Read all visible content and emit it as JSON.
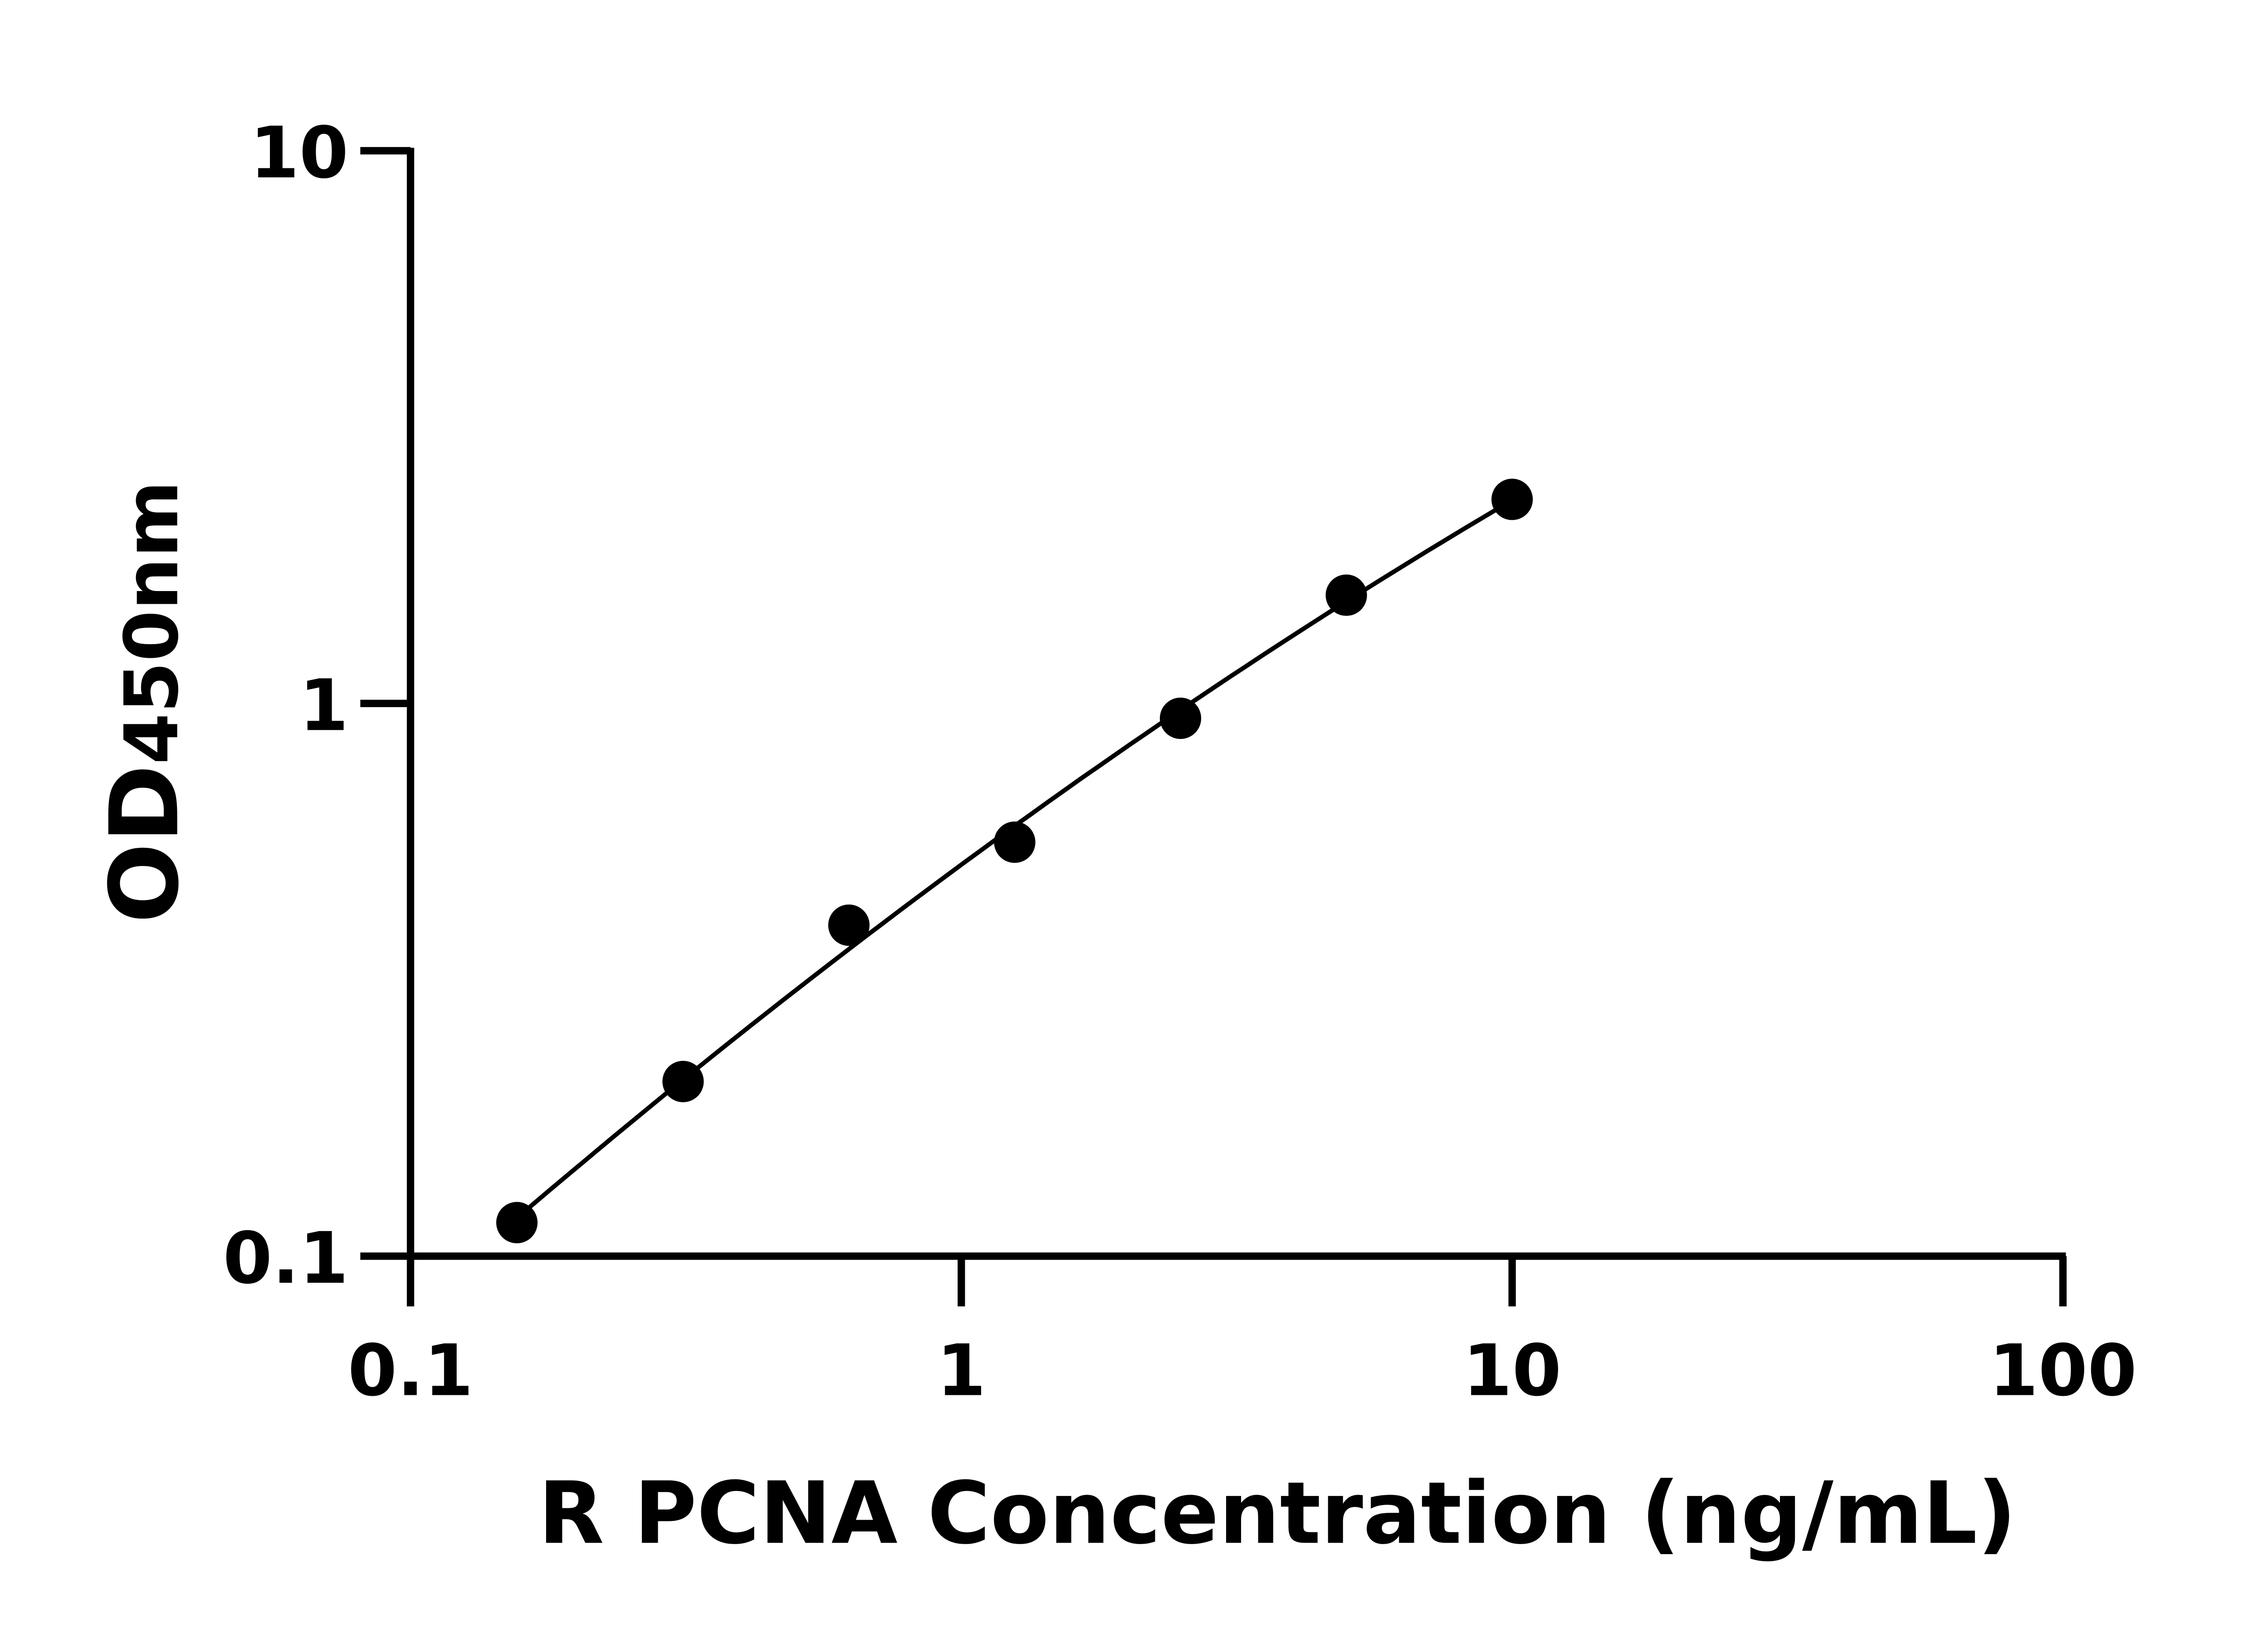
{
  "chart_data": {
    "type": "scatter",
    "title": "",
    "xlabel": "R PCNA Concentration (ng/mL)",
    "ylabel": "OD450nm",
    "ylabel_main": "OD",
    "ylabel_sub": "450nm",
    "x_scale": "log",
    "y_scale": "log",
    "xlim": [
      0.1,
      100
    ],
    "ylim": [
      0.1,
      10
    ],
    "x_ticks": [
      "0.1",
      "1",
      "10",
      "100"
    ],
    "y_ticks": [
      "0.1",
      "1",
      "10"
    ],
    "grid": false,
    "legend": "none",
    "fit_line": true,
    "marker_color": "#000000",
    "line_color": "#000000",
    "points": [
      {
        "x": 0.156,
        "y": 0.115
      },
      {
        "x": 0.3125,
        "y": 0.207
      },
      {
        "x": 0.625,
        "y": 0.397
      },
      {
        "x": 1.25,
        "y": 0.561
      },
      {
        "x": 2.5,
        "y": 0.94
      },
      {
        "x": 5,
        "y": 1.57
      },
      {
        "x": 10,
        "y": 2.34
      }
    ]
  }
}
